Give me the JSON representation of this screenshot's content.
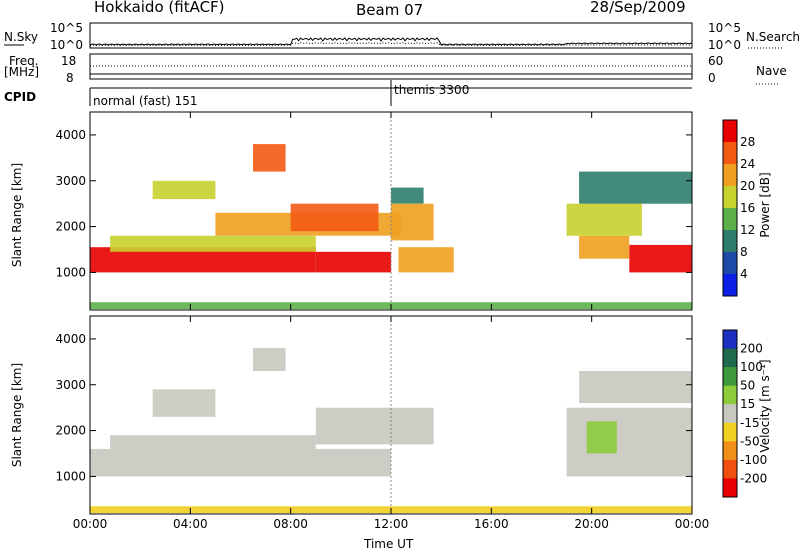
{
  "header": {
    "station": "Hokkaido (fitACF)",
    "beam": "Beam 07",
    "date": "28/Sep/2009"
  },
  "aux_panels": {
    "nsky_label": "N.Sky",
    "nsearch_label": "N.Search",
    "log_ticks": [
      "10^5",
      "10^0"
    ],
    "freq_label_1": "Freq.",
    "freq_label_2": "[MHz]",
    "freq_ticks": [
      "18",
      "8"
    ],
    "nave_label": "Nave",
    "nave_ticks": [
      "60",
      "0"
    ],
    "cpid_label": "CPID",
    "cpid_segments": [
      {
        "name": "normal (fast) 151",
        "start_hour": 0
      },
      {
        "name": "themis 3300",
        "start_hour": 12
      }
    ]
  },
  "x_axis": {
    "title": "Time UT",
    "tick_labels": [
      "00:00",
      "04:00",
      "08:00",
      "12:00",
      "16:00",
      "20:00",
      "00:00"
    ]
  },
  "power_panel": {
    "ylabel": "Slant Range [km]",
    "y_ticks": [
      "1000",
      "2000",
      "3000",
      "4000"
    ],
    "colorbar_label": "Power [dB]",
    "colorbar_ticks": [
      "4",
      "8",
      "12",
      "16",
      "20",
      "24",
      "28"
    ],
    "colors": [
      "#0a1ee6",
      "#1c4aa6",
      "#2e7d6a",
      "#5cb04a",
      "#c8d22e",
      "#f0a020",
      "#f25a14",
      "#e80000"
    ]
  },
  "velocity_panel": {
    "ylabel": "Slant Range [km]",
    "y_ticks": [
      "1000",
      "2000",
      "3000",
      "4000"
    ],
    "colorbar_label": "Velocity [m s⁻¹]",
    "colorbar_ticks": [
      "200",
      "100",
      "50",
      "15",
      "-15",
      "-50",
      "-100",
      "-200"
    ],
    "colors": [
      "#1d2fc0",
      "#1f6a4c",
      "#3c9a3c",
      "#8ccc3c",
      "#c8c8c0",
      "#f0d020",
      "#f09018",
      "#f05010",
      "#e80000"
    ]
  },
  "chart_data": [
    {
      "type": "heatmap",
      "title": "Power [dB]",
      "xlabel": "Time UT",
      "ylabel": "Slant Range [km]",
      "xlim": [
        0,
        24
      ],
      "ylim": [
        180,
        4500
      ],
      "colorbar_range": [
        0,
        30
      ],
      "series": [
        {
          "t0": 0,
          "t1": 9.0,
          "r0": 1000,
          "r1": 1550,
          "value": 28
        },
        {
          "t0": 9.0,
          "t1": 12.0,
          "r0": 1000,
          "r1": 1450,
          "value": 27
        },
        {
          "t0": 0.8,
          "t1": 9.0,
          "r0": 1450,
          "r1": 1800,
          "value": 18
        },
        {
          "t0": 5.0,
          "t1": 12.4,
          "r0": 1800,
          "r1": 2300,
          "value": 22
        },
        {
          "t0": 8.0,
          "t1": 11.5,
          "r0": 1900,
          "r1": 2500,
          "value": 26
        },
        {
          "t0": 12.0,
          "t1": 13.7,
          "r0": 1700,
          "r1": 2500,
          "value": 20
        },
        {
          "t0": 12.0,
          "t1": 13.3,
          "r0": 2500,
          "r1": 2850,
          "value": 10
        },
        {
          "t0": 12.3,
          "t1": 14.5,
          "r0": 1000,
          "r1": 1550,
          "value": 20
        },
        {
          "t0": 2.5,
          "t1": 5.0,
          "r0": 2600,
          "r1": 3000,
          "value": 16
        },
        {
          "t0": 6.5,
          "t1": 7.8,
          "r0": 3200,
          "r1": 3800,
          "value": 24
        },
        {
          "t0": 19.0,
          "t1": 22.0,
          "r0": 1800,
          "r1": 2500,
          "value": 18
        },
        {
          "t0": 21.5,
          "t1": 24.0,
          "r0": 1000,
          "r1": 1600,
          "value": 28
        },
        {
          "t0": 19.5,
          "t1": 21.5,
          "r0": 1300,
          "r1": 1800,
          "value": 22
        },
        {
          "t0": 19.5,
          "t1": 24.0,
          "r0": 2500,
          "r1": 3200,
          "value": 8
        },
        {
          "t0": 0,
          "t1": 24.0,
          "r0": 200,
          "r1": 350,
          "value": 12
        }
      ]
    },
    {
      "type": "heatmap",
      "title": "Velocity [m s⁻¹]",
      "xlabel": "Time UT",
      "ylabel": "Slant Range [km]",
      "xlim": [
        0,
        24
      ],
      "ylim": [
        180,
        4500
      ],
      "colorbar_range": [
        -200,
        200
      ],
      "series": [
        {
          "t0": 0,
          "t1": 12.0,
          "r0": 1000,
          "r1": 1600,
          "value": 0
        },
        {
          "t0": 0.8,
          "t1": 9.0,
          "r0": 1600,
          "r1": 1900,
          "value": 0
        },
        {
          "t0": 9.0,
          "t1": 13.7,
          "r0": 1700,
          "r1": 2500,
          "value": 0
        },
        {
          "t0": 2.5,
          "t1": 5.0,
          "r0": 2300,
          "r1": 2900,
          "value": 0
        },
        {
          "t0": 6.5,
          "t1": 7.8,
          "r0": 3300,
          "r1": 3800,
          "value": -20
        },
        {
          "t0": 19.0,
          "t1": 24.0,
          "r0": 1000,
          "r1": 2500,
          "value": 0
        },
        {
          "t0": 19.8,
          "t1": 21.0,
          "r0": 1500,
          "r1": 2200,
          "value": 40
        },
        {
          "t0": 19.5,
          "t1": 24.0,
          "r0": 2600,
          "r1": 3300,
          "value": 0
        },
        {
          "t0": 0,
          "t1": 24.0,
          "r0": 200,
          "r1": 350,
          "value": -60
        }
      ]
    }
  ]
}
